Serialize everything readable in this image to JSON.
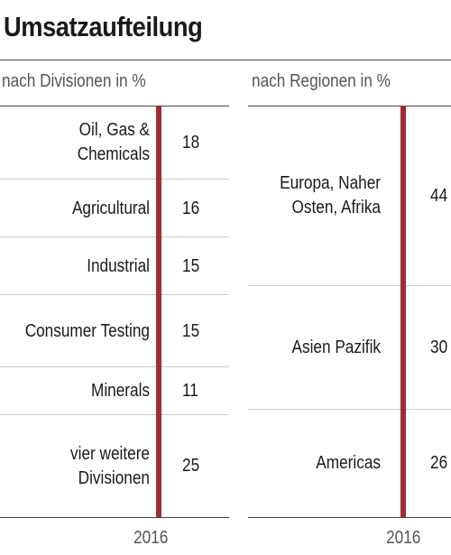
{
  "chart_data": [
    {
      "type": "table",
      "title": "Umsatzaufteilung",
      "subtitle": "nach Divisionen in %",
      "categories": [
        "Oil, Gas & Chemicals",
        "Agricultural",
        "Industrial",
        "Consumer Testing",
        "Minerals",
        "vier weitere Divisionen"
      ],
      "values": [
        18,
        16,
        15,
        15,
        11,
        25
      ],
      "x": [
        "2016"
      ]
    },
    {
      "type": "table",
      "subtitle": "nach Regionen in %",
      "categories": [
        "Europa, Naher Osten, Afrika",
        "Asien Pazifik",
        "Americas"
      ],
      "values": [
        44,
        30,
        26
      ],
      "x": [
        "2016"
      ]
    }
  ],
  "colors": {
    "accent": "#a12b36",
    "rule": "#444444",
    "separator": "#c9c9c9"
  }
}
